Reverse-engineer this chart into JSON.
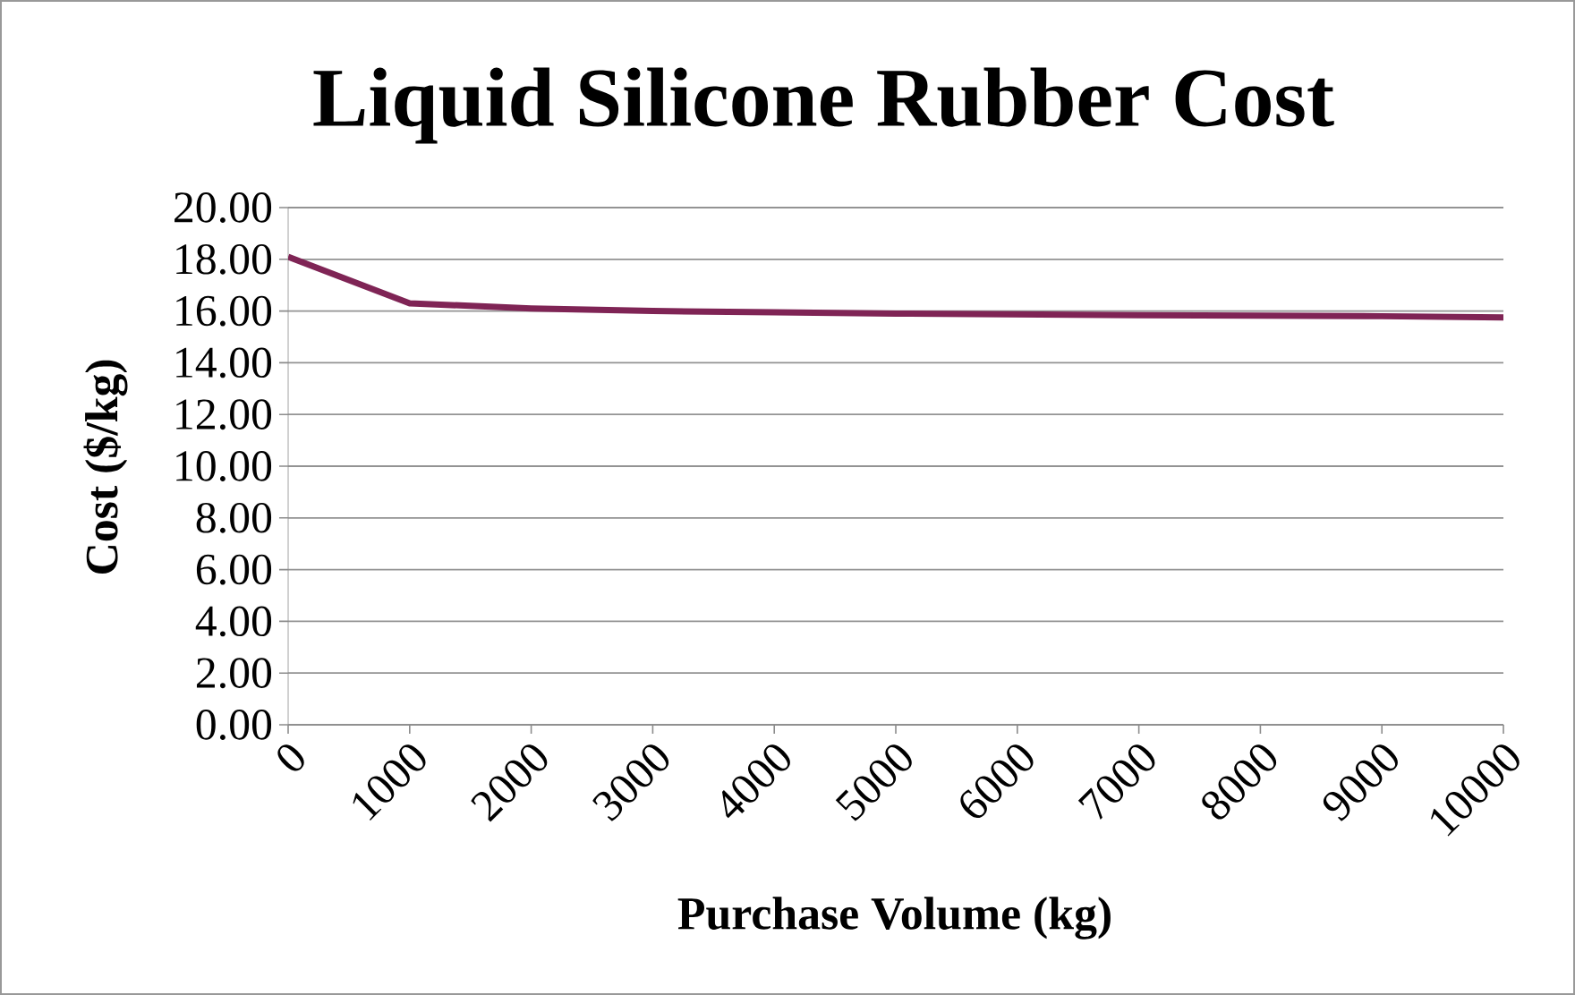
{
  "chart_data": {
    "type": "line",
    "title": "Liquid Silicone Rubber Cost",
    "xlabel": "Purchase Volume (kg)",
    "ylabel": "Cost ($/kg)",
    "x": [
      0,
      1000,
      2000,
      3000,
      4000,
      5000,
      6000,
      7000,
      8000,
      9000,
      10000
    ],
    "series": [
      {
        "color": "#7f2455",
        "values": [
          18.1,
          16.3,
          16.1,
          16.0,
          15.95,
          15.9,
          15.87,
          15.84,
          15.82,
          15.8,
          15.75
        ]
      }
    ],
    "xlim": [
      0,
      10000
    ],
    "xticks": [
      0,
      1000,
      2000,
      3000,
      4000,
      5000,
      6000,
      7000,
      8000,
      9000,
      10000
    ],
    "ylim": [
      0,
      20
    ],
    "yticks": [
      {
        "value": 0,
        "label": "0.00"
      },
      {
        "value": 2,
        "label": "2.00"
      },
      {
        "value": 4,
        "label": "4.00"
      },
      {
        "value": 6,
        "label": "6.00"
      },
      {
        "value": 8,
        "label": "8.00"
      },
      {
        "value": 10,
        "label": "10.00"
      },
      {
        "value": 12,
        "label": "12.00"
      },
      {
        "value": 14,
        "label": "14.00"
      },
      {
        "value": 16,
        "label": "16.00"
      },
      {
        "value": 18,
        "label": "18.00"
      },
      {
        "value": 20,
        "label": "20.00"
      }
    ],
    "grid": "y",
    "marker": "none",
    "line_style": "solid"
  }
}
